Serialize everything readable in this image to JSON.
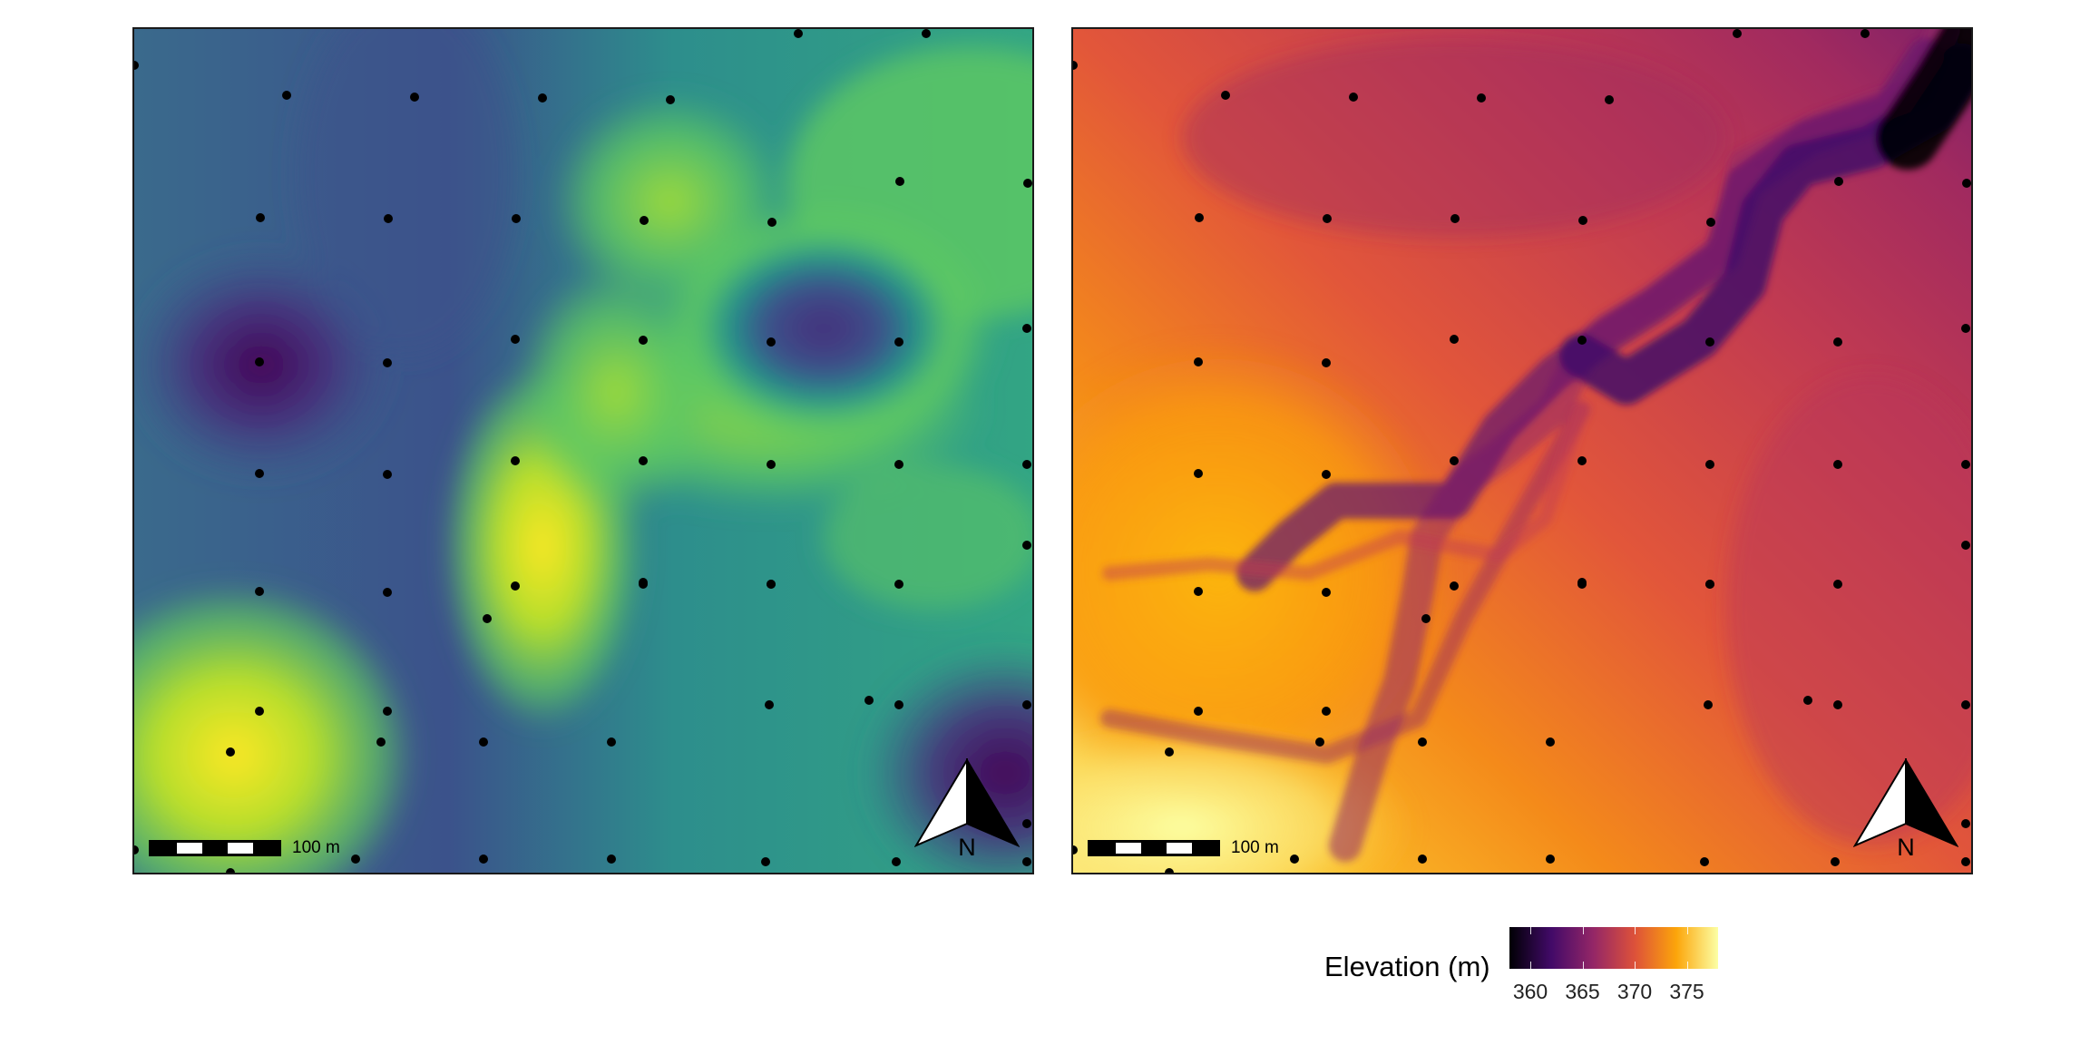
{
  "maps": [
    {
      "id": "left",
      "palette": "viridis",
      "scale_bar_label": "100 m",
      "north_label": "N",
      "icons": [
        "north-arrow-icon",
        "scale-bar-icon"
      ]
    },
    {
      "id": "right",
      "palette": "inferno",
      "scale_bar_label": "100 m",
      "north_label": "N",
      "icons": [
        "north-arrow-icon",
        "scale-bar-icon"
      ]
    }
  ],
  "legend": {
    "title": "Elevation (m)",
    "ticks": [
      "360",
      "365",
      "370",
      "375"
    ],
    "range": [
      358,
      378
    ],
    "tick_values": [
      360,
      365,
      370,
      375
    ]
  },
  "colors": {
    "viridis": [
      "#440154",
      "#3b528b",
      "#21918c",
      "#5ec962",
      "#fde725"
    ],
    "inferno": [
      "#000004",
      "#420a68",
      "#932667",
      "#dd513a",
      "#fca50a",
      "#fcffa4"
    ],
    "points": "#000000",
    "frame": "#1a1a1a"
  }
}
